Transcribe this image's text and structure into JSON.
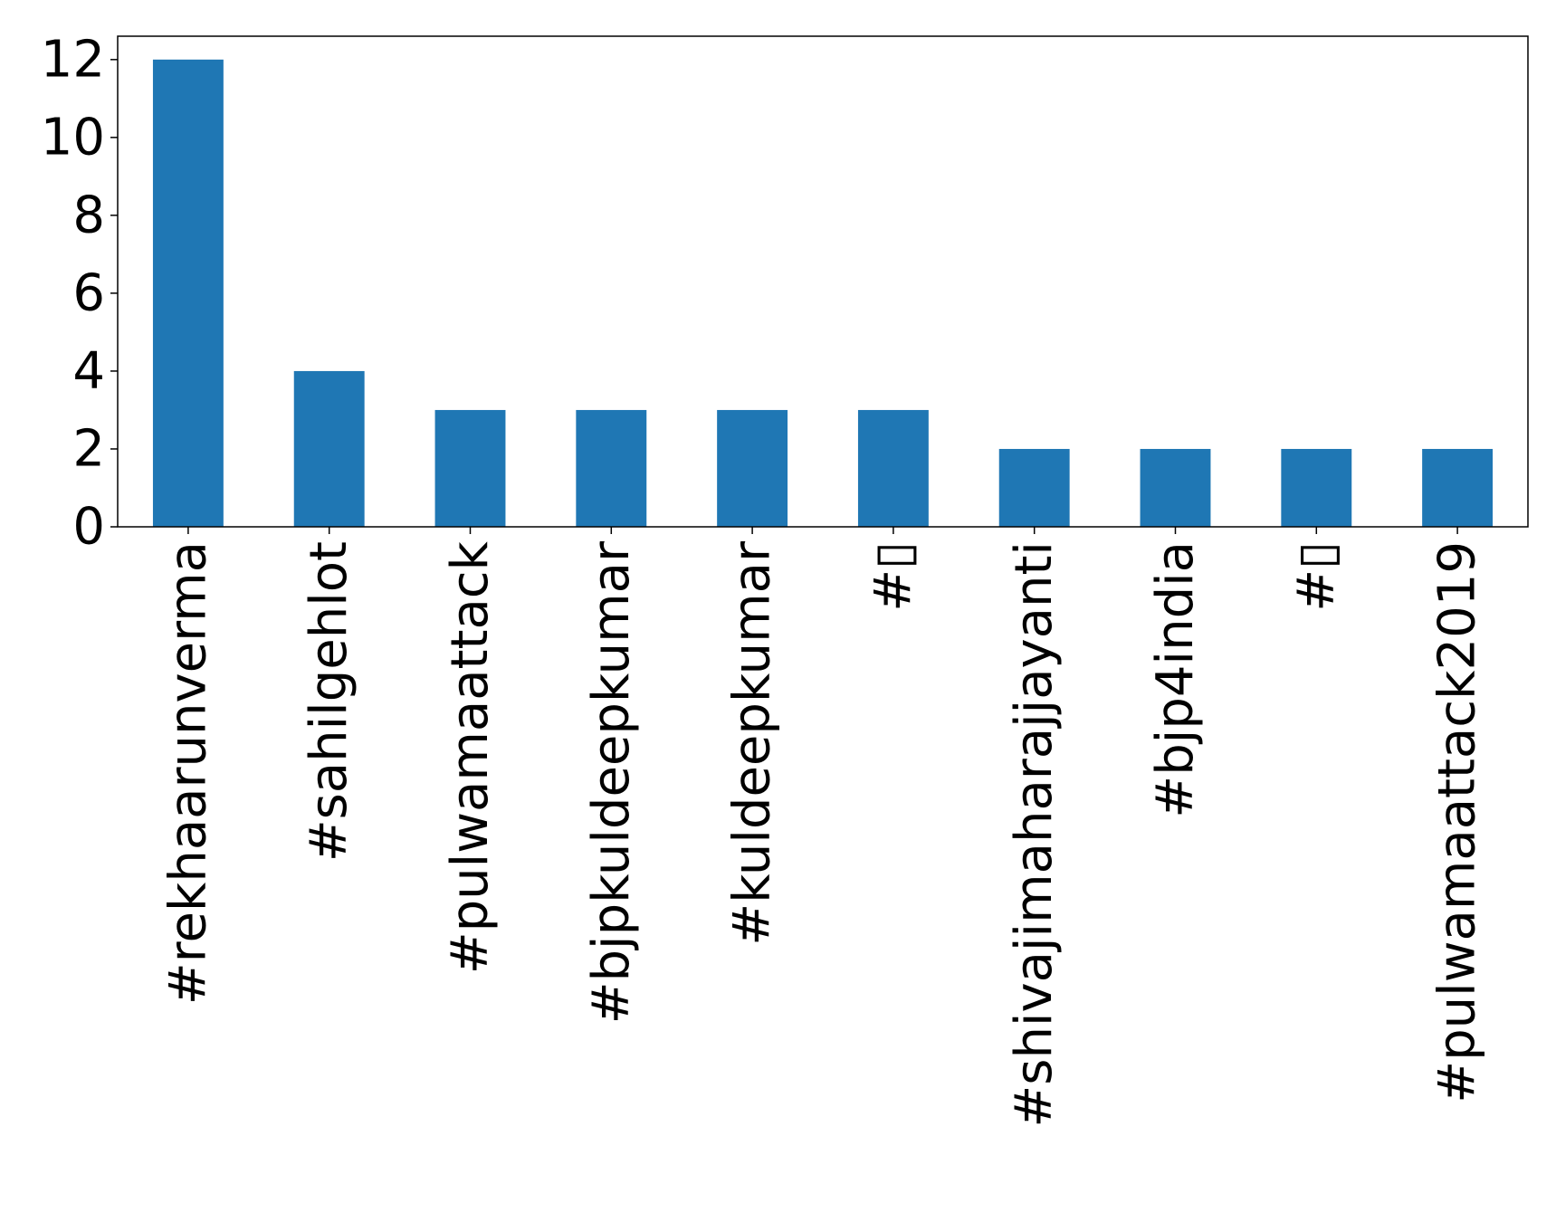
{
  "chart_data": {
    "type": "bar",
    "title": "",
    "xlabel": "",
    "ylabel": "",
    "categories": [
      "#rekhaarunverma",
      "#sahilgehlot",
      "#pulwamaattack",
      "#bjpkuldeepkumar",
      "#kuldeepkumar",
      "#▯",
      "#shivajimaharajjayanti",
      "#bjp4india",
      "#▯",
      "#pulwamaattack2019"
    ],
    "values": [
      12,
      4,
      3,
      3,
      3,
      3,
      2,
      2,
      2,
      2
    ],
    "ylim": [
      0,
      12.6
    ],
    "yticks": [
      0,
      2,
      4,
      6,
      8,
      10,
      12
    ],
    "grid": false,
    "legend": "none",
    "bar_color": "#1f77b4",
    "axis_color": "#000000"
  }
}
